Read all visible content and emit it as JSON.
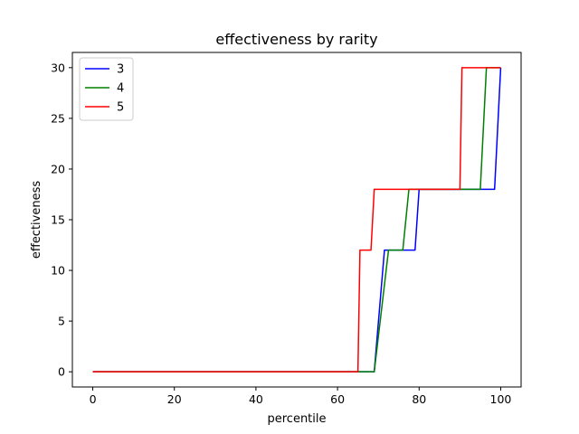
{
  "chart_data": {
    "type": "line",
    "title": "effectiveness by rarity",
    "xlabel": "percentile",
    "ylabel": "effectiveness",
    "xlim": [
      -5,
      105
    ],
    "ylim": [
      -1.5,
      31.5
    ],
    "xticks": [
      0,
      20,
      40,
      60,
      80,
      100
    ],
    "yticks": [
      0,
      5,
      10,
      15,
      20,
      25,
      30
    ],
    "grid": false,
    "legend_position": "upper left",
    "series": [
      {
        "name": "3",
        "color": "#0000ff",
        "points": [
          [
            0,
            0
          ],
          [
            69,
            0
          ],
          [
            71.5,
            12
          ],
          [
            79,
            12
          ],
          [
            80,
            18
          ],
          [
            98.5,
            18
          ],
          [
            100,
            30
          ]
        ]
      },
      {
        "name": "4",
        "color": "#008000",
        "points": [
          [
            0,
            0
          ],
          [
            69,
            0
          ],
          [
            72.5,
            12
          ],
          [
            76,
            12
          ],
          [
            77.5,
            18
          ],
          [
            95,
            18
          ],
          [
            96.5,
            30
          ],
          [
            100,
            30
          ]
        ]
      },
      {
        "name": "5",
        "color": "#ff0000",
        "points": [
          [
            0,
            0
          ],
          [
            65,
            0
          ],
          [
            65.5,
            12
          ],
          [
            68.2,
            12
          ],
          [
            69,
            18
          ],
          [
            90,
            18
          ],
          [
            90.5,
            30
          ],
          [
            100,
            30
          ]
        ]
      }
    ]
  }
}
